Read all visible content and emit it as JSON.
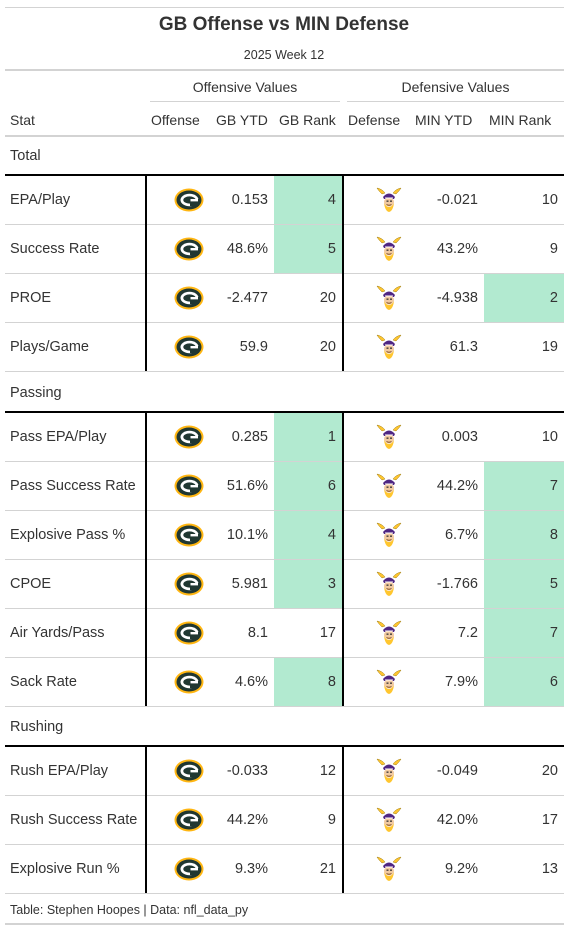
{
  "title": "GB Offense vs MIN Defense",
  "subtitle": "2025 Week 12",
  "spanners": {
    "offense": "Offensive Values",
    "defense": "Defensive Values"
  },
  "columns": {
    "stat": "Stat",
    "offense": "Offense",
    "gb_ytd": "GB YTD",
    "gb_rank": "GB Rank",
    "defense": "Defense",
    "min_ytd": "MIN YTD",
    "min_rank": "MIN Rank"
  },
  "highlight_color": "#b2ead0",
  "highlight_rule": "rank <= 8",
  "logos": {
    "offense": "green-bay-packers-g-logo-icon",
    "defense": "minnesota-vikings-head-logo-icon"
  },
  "colors": {
    "packers_green": "#203731",
    "packers_gold": "#ffb612",
    "vikings_purple": "#4f2683",
    "vikings_gold": "#ffc62f"
  },
  "source": "Table: Stephen Hoopes | Data: nfl_data_py",
  "chart_data": {
    "type": "table",
    "groups": [
      {
        "name": "Total",
        "rows": [
          {
            "stat": "EPA/Play",
            "gb_ytd": "0.153",
            "gb_rank": 4,
            "min_ytd": "-0.021",
            "min_rank": 10
          },
          {
            "stat": "Success Rate",
            "gb_ytd": "48.6%",
            "gb_rank": 5,
            "min_ytd": "43.2%",
            "min_rank": 9
          },
          {
            "stat": "PROE",
            "gb_ytd": "-2.477",
            "gb_rank": 20,
            "min_ytd": "-4.938",
            "min_rank": 2
          },
          {
            "stat": "Plays/Game",
            "gb_ytd": "59.9",
            "gb_rank": 20,
            "min_ytd": "61.3",
            "min_rank": 19
          }
        ]
      },
      {
        "name": "Passing",
        "rows": [
          {
            "stat": "Pass EPA/Play",
            "gb_ytd": "0.285",
            "gb_rank": 1,
            "min_ytd": "0.003",
            "min_rank": 10
          },
          {
            "stat": "Pass Success Rate",
            "gb_ytd": "51.6%",
            "gb_rank": 6,
            "min_ytd": "44.2%",
            "min_rank": 7
          },
          {
            "stat": "Explosive Pass %",
            "gb_ytd": "10.1%",
            "gb_rank": 4,
            "min_ytd": "6.7%",
            "min_rank": 8
          },
          {
            "stat": "CPOE",
            "gb_ytd": "5.981",
            "gb_rank": 3,
            "min_ytd": "-1.766",
            "min_rank": 5
          },
          {
            "stat": "Air Yards/Pass",
            "gb_ytd": "8.1",
            "gb_rank": 17,
            "min_ytd": "7.2",
            "min_rank": 7
          },
          {
            "stat": "Sack Rate",
            "gb_ytd": "4.6%",
            "gb_rank": 8,
            "min_ytd": "7.9%",
            "min_rank": 6
          }
        ]
      },
      {
        "name": "Rushing",
        "rows": [
          {
            "stat": "Rush EPA/Play",
            "gb_ytd": "-0.033",
            "gb_rank": 12,
            "min_ytd": "-0.049",
            "min_rank": 20
          },
          {
            "stat": "Rush Success Rate",
            "gb_ytd": "44.2%",
            "gb_rank": 9,
            "min_ytd": "42.0%",
            "min_rank": 17
          },
          {
            "stat": "Explosive Run %",
            "gb_ytd": "9.3%",
            "gb_rank": 21,
            "min_ytd": "9.2%",
            "min_rank": 13
          }
        ]
      }
    ]
  }
}
